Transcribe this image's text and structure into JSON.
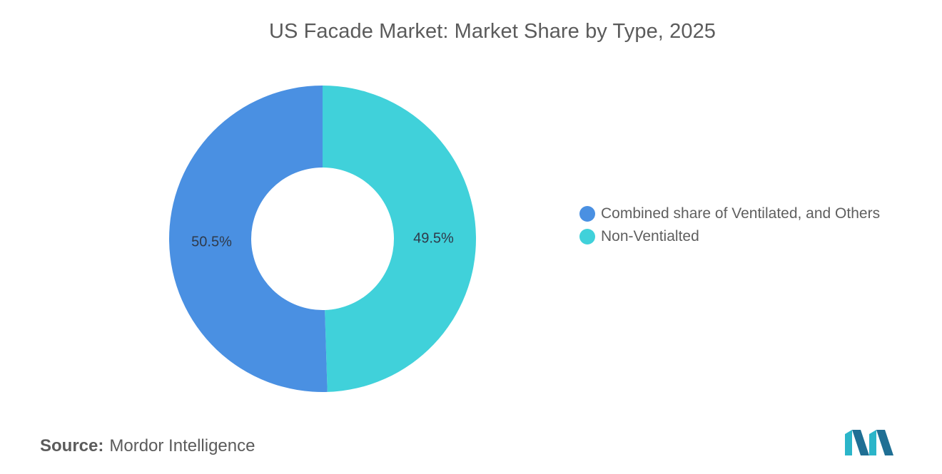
{
  "chart_data": {
    "type": "pie",
    "title": "US Facade Market: Market Share by Type, 2025",
    "categories": [
      "Combined share of Ventilated, and Others",
      "Non-Ventialted"
    ],
    "values": [
      50.5,
      49.5
    ],
    "labels": [
      "50.5%",
      "49.5%"
    ],
    "colors": [
      "#4a90e2",
      "#40d1da"
    ],
    "donut": true,
    "legend_position": "right"
  },
  "source": {
    "label": "Source:",
    "value": "Mordor Intelligence"
  }
}
